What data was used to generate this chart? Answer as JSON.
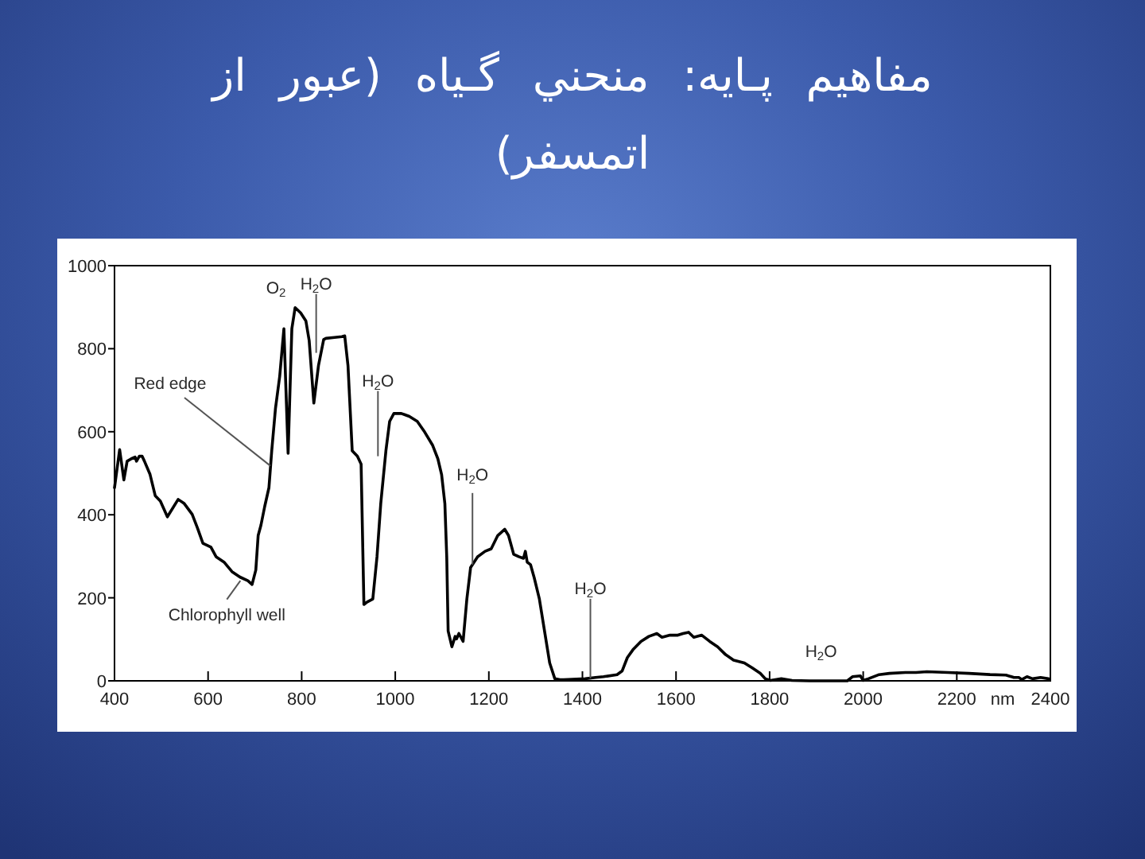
{
  "chart_data": {
    "type": "line",
    "title": "مفاهيم پـايه: منحني گـياه (عبور از اتمسفر)",
    "xlabel": "nm",
    "color": "#000000",
    "x": [
      400,
      411,
      420,
      427,
      436,
      444,
      447,
      453,
      459,
      464,
      476,
      487,
      498,
      513,
      536,
      549,
      566,
      577,
      589,
      606,
      617,
      634,
      651,
      668,
      685,
      694,
      702,
      707,
      713,
      721,
      730,
      736,
      744,
      753,
      762,
      771,
      779,
      786,
      798,
      809,
      816,
      826,
      836,
      847,
      852,
      870,
      886,
      892,
      899,
      908,
      919,
      927,
      933,
      940,
      952,
      961,
      969,
      980,
      988,
      997,
      1013,
      1030,
      1047,
      1063,
      1080,
      1091,
      1099,
      1106,
      1110,
      1113,
      1121,
      1128,
      1131,
      1136,
      1145,
      1153,
      1161,
      1176,
      1192,
      1205,
      1219,
      1234,
      1242,
      1253,
      1264,
      1274,
      1278,
      1282,
      1289,
      1297,
      1308,
      1319,
      1330,
      1341,
      1352,
      1360,
      1406,
      1428,
      1445,
      1474,
      1485,
      1496,
      1508,
      1525,
      1542,
      1559,
      1570,
      1587,
      1604,
      1615,
      1627,
      1638,
      1655,
      1672,
      1689,
      1706,
      1723,
      1746,
      1763,
      1780,
      1791,
      1802,
      1825,
      1848,
      1887,
      1966,
      1977,
      1994,
      2000,
      2011,
      2034,
      2056,
      2090,
      2113,
      2136,
      2181,
      2226,
      2271,
      2305,
      2322,
      2333,
      2339,
      2350,
      2362,
      2379,
      2396
    ],
    "values": [
      465,
      557,
      484,
      529,
      535,
      539,
      529,
      541,
      541,
      529,
      497,
      446,
      433,
      395,
      437,
      427,
      401,
      369,
      331,
      322,
      299,
      286,
      263,
      250,
      241,
      232,
      267,
      350,
      375,
      420,
      465,
      554,
      656,
      733,
      848,
      548,
      848,
      899,
      886,
      867,
      820,
      669,
      760,
      822,
      825,
      827,
      829,
      831,
      759,
      554,
      541,
      522,
      184,
      190,
      197,
      299,
      427,
      554,
      625,
      644,
      644,
      637,
      625,
      599,
      567,
      535,
      497,
      427,
      299,
      120,
      82,
      107,
      101,
      114,
      95,
      197,
      273,
      299,
      312,
      318,
      350,
      365,
      350,
      305,
      299,
      295,
      312,
      286,
      280,
      248,
      197,
      120,
      43,
      5,
      3,
      3,
      5,
      8,
      10,
      15,
      24,
      56,
      75,
      95,
      107,
      114,
      105,
      110,
      110,
      114,
      117,
      105,
      110,
      95,
      82,
      63,
      50,
      43,
      31,
      18,
      5,
      1,
      5,
      1,
      0,
      0,
      10,
      12,
      1,
      5,
      15,
      18,
      20,
      20,
      22,
      20,
      18,
      15,
      14,
      8,
      8,
      3,
      10,
      5,
      8,
      5
    ],
    "xlim": [
      400,
      2400
    ],
    "ylim": [
      0,
      1000
    ],
    "xticks": [
      400,
      600,
      800,
      1000,
      1200,
      1400,
      1600,
      1800,
      2000,
      2200,
      2400
    ],
    "yticks": [
      0,
      200,
      400,
      600,
      800,
      1000
    ],
    "annotations": [
      {
        "text": "O$_{2}$",
        "x": 760,
        "y": 855
      },
      {
        "text": "H$_{2}$O",
        "x": 831,
        "y": 790
      },
      {
        "text": "H$_{2}$O",
        "x": 963,
        "y": 541
      },
      {
        "text": "H$_{2}$O",
        "x": 1165,
        "y": 280
      },
      {
        "text": "H$_{2}$O",
        "x": 1417,
        "y": 6
      },
      {
        "text": "H$_{2}$O",
        "x": 1910,
        "y": 0
      },
      {
        "text": "Red edge",
        "x": 733,
        "y": 518
      },
      {
        "text": "Chlorophyll well",
        "x": 669,
        "y": 241
      }
    ]
  }
}
